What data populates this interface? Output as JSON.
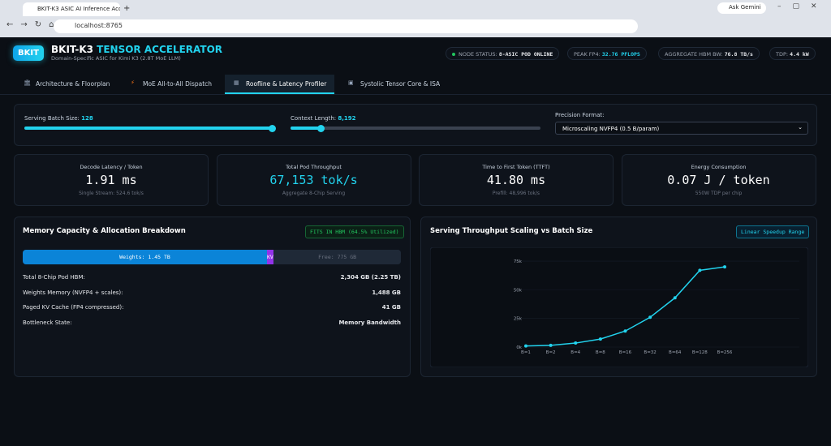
{
  "browser": {
    "tab_title": "BKIT-K3 ASIC AI Inference Acce",
    "url": "localhost:8765",
    "gemini": "Ask Gemini"
  },
  "header": {
    "logo": "BKIT",
    "title": "BKIT-K3",
    "title_accent": "TENSOR ACCELERATOR",
    "subtitle": "Domain-Specific ASIC for Kimi K3 (2.8T MoE LLM)",
    "stats": [
      {
        "label": "NODE STATUS:",
        "value": "8-ASIC POD ONLINE"
      },
      {
        "label": "PEAK FP4:",
        "value": "32.76 PFLOPS"
      },
      {
        "label": "AGGREGATE HBM BW:",
        "value": "76.8 TB/s"
      },
      {
        "label": "TDP:",
        "value": "4.4 kW"
      }
    ]
  },
  "tabs": [
    "Architecture & Floorplan",
    "MoE All-to-All Dispatch",
    "Roofline & Latency Profiler",
    "Systolic Tensor Core & ISA"
  ],
  "controls": {
    "batch_label": "Serving Batch Size:",
    "batch_value": "128",
    "context_label": "Context Length:",
    "context_value": "8,192",
    "precision_label": "Precision Format:",
    "precision_value": "Microscaling NVFP4 (0.5 B/param)"
  },
  "metrics": [
    {
      "title": "Decode Latency / Token",
      "value": "1.91 ms",
      "sub": "Single Stream: 524.6 tok/s"
    },
    {
      "title": "Total Pod Throughput",
      "value": "67,153 tok/s",
      "sub": "Aggregate 8-Chip Serving"
    },
    {
      "title": "Time to First Token (TTFT)",
      "value": "41.80 ms",
      "sub": "Prefill: 48,996 tok/s"
    },
    {
      "title": "Energy Consumption",
      "value": "0.07 J / token",
      "sub": "550W TDP per chip"
    }
  ],
  "memory": {
    "title": "Memory Capacity & Allocation Breakdown",
    "badge": "FITS IN HBM (64.5% Utilized)",
    "bar": [
      {
        "label": "Weights: 1.45 TB",
        "value": 1488
      },
      {
        "label": "KV:",
        "value": 41
      },
      {
        "label": "Free: 775 GB",
        "value": 775
      }
    ],
    "rows": [
      [
        "Total 8-Chip Pod HBM:",
        "2,304 GB (2.25 TB)"
      ],
      [
        "Weights Memory (NVFP4 + scales):",
        "1,488 GB"
      ],
      [
        "Paged KV Cache (FP4 compressed):",
        "41 GB"
      ],
      [
        "Bottleneck State:",
        "Memory Bandwidth"
      ]
    ]
  },
  "chart_data": {
    "type": "line",
    "title": "Serving Throughput Scaling vs Batch Size",
    "badge": "Linear Speedup Range",
    "categories": [
      "B=1",
      "B=2",
      "B=4",
      "B=8",
      "B=16",
      "B=32",
      "B=64",
      "B=128",
      "B=256"
    ],
    "series": [
      {
        "name": "Throughput",
        "color": "#22d3ee",
        "values": [
          1000,
          1500,
          3500,
          7000,
          14000,
          26000,
          43000,
          67000,
          70000
        ]
      }
    ],
    "ylim": [
      0,
      80000
    ],
    "yticks": [
      {
        "value": 0,
        "label": "0k"
      },
      {
        "value": 25000,
        "label": "25k"
      },
      {
        "value": 50000,
        "label": "50k"
      },
      {
        "value": 75000,
        "label": "75k"
      }
    ],
    "grid": true
  }
}
